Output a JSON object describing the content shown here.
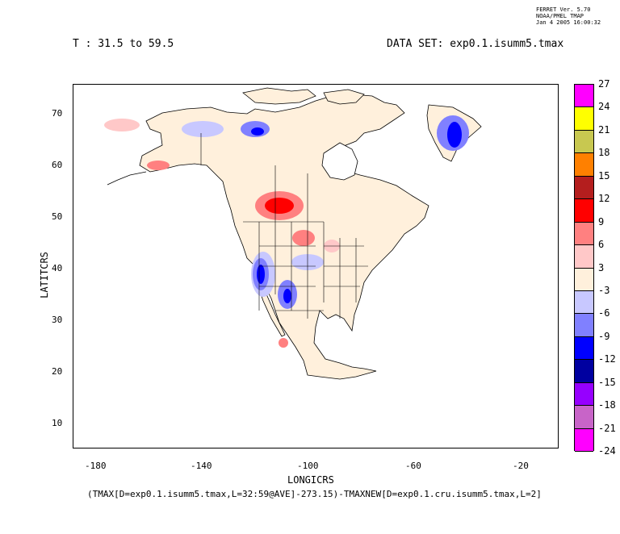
{
  "header": {
    "ferret_meta": [
      "FERRET Ver. 5.70",
      "NOAA/PMEL TMAP",
      "Jan  4 2005 16:00:32"
    ],
    "time_range": "T : 31.5 to 59.5",
    "dataset": "DATA SET: exp0.1.isumm5.tmax"
  },
  "axes": {
    "xlabel": "LONGICRS",
    "ylabel": "LATITCRS",
    "x_ticks": [
      "-180",
      "-140",
      "-100",
      "-60",
      "-20"
    ],
    "y_ticks": [
      "70",
      "60",
      "50",
      "40",
      "30",
      "20",
      "10"
    ]
  },
  "footer": {
    "expression": "(TMAX[D=exp0.1.isumm5.tmax,L=32:59@AVE]-273.15)-TMAXNEW[D=exp0.1.cru.isumm5.tmax,L=2]"
  },
  "colorbar": {
    "labels": [
      "27",
      "24",
      "21",
      "18",
      "15",
      "12",
      "9",
      "6",
      "3",
      "-3",
      "-6",
      "-9",
      "-12",
      "-15",
      "-18",
      "-21",
      "-24"
    ],
    "colors": [
      "#ff00ff",
      "#ffff00",
      "#c8c850",
      "#ff8000",
      "#b41e1e",
      "#ff0000",
      "#ff8080",
      "#ffc8c8",
      "#fff0dc",
      "#c8c8ff",
      "#8080ff",
      "#0000ff",
      "#0000a0",
      "#9600ff",
      "#c864c8",
      "#ff00ff"
    ]
  },
  "chart_data": {
    "type": "heatmap",
    "title": "(TMAX[D=exp0.1.isumm5.tmax,L=32:59@AVE]-273.15)-TMAXNEW[D=exp0.1.cru.isumm5.tmax,L=2]",
    "xlabel": "LONGICRS",
    "ylabel": "LATITCRS",
    "xlim": [
      -189,
      -8
    ],
    "ylim": [
      5,
      76
    ],
    "levels": [
      -24,
      -21,
      -18,
      -15,
      -12,
      -9,
      -6,
      -3,
      3,
      6,
      9,
      12,
      15,
      18,
      21,
      24,
      27
    ]
  }
}
